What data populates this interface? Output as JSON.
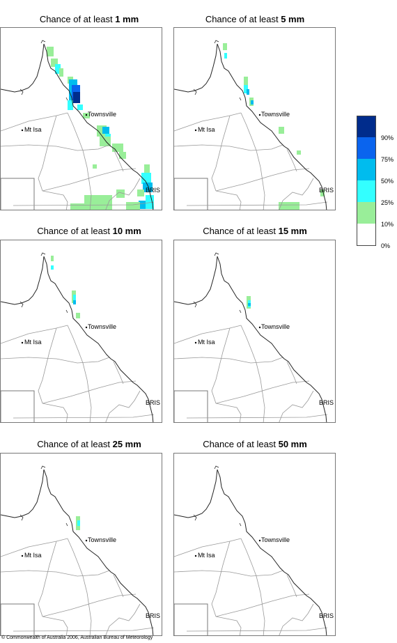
{
  "panels": [
    {
      "prefix": "Chance of at least ",
      "amount": "1 mm"
    },
    {
      "prefix": "Chance of at least ",
      "amount": "5 mm"
    },
    {
      "prefix": "Chance of at least ",
      "amount": "10 mm"
    },
    {
      "prefix": "Chance of at least ",
      "amount": "15 mm"
    },
    {
      "prefix": "Chance of at least ",
      "amount": "25 mm"
    },
    {
      "prefix": "Chance of at least ",
      "amount": "50 mm"
    }
  ],
  "places": {
    "townsville": "Townsville",
    "mt_isa": "Mt Isa",
    "brisbane": "BRIS"
  },
  "legend": {
    "labels": [
      "90%",
      "75%",
      "50%",
      "25%",
      "10%",
      "0%"
    ],
    "colors": [
      "#002c8c",
      "#0a64ee",
      "#00bcee",
      "#33ffff",
      "#99ee99",
      "#ffffff"
    ]
  },
  "copyright": "© Commonwealth of Australia 2006, Australian Bureau of Meteorology"
}
